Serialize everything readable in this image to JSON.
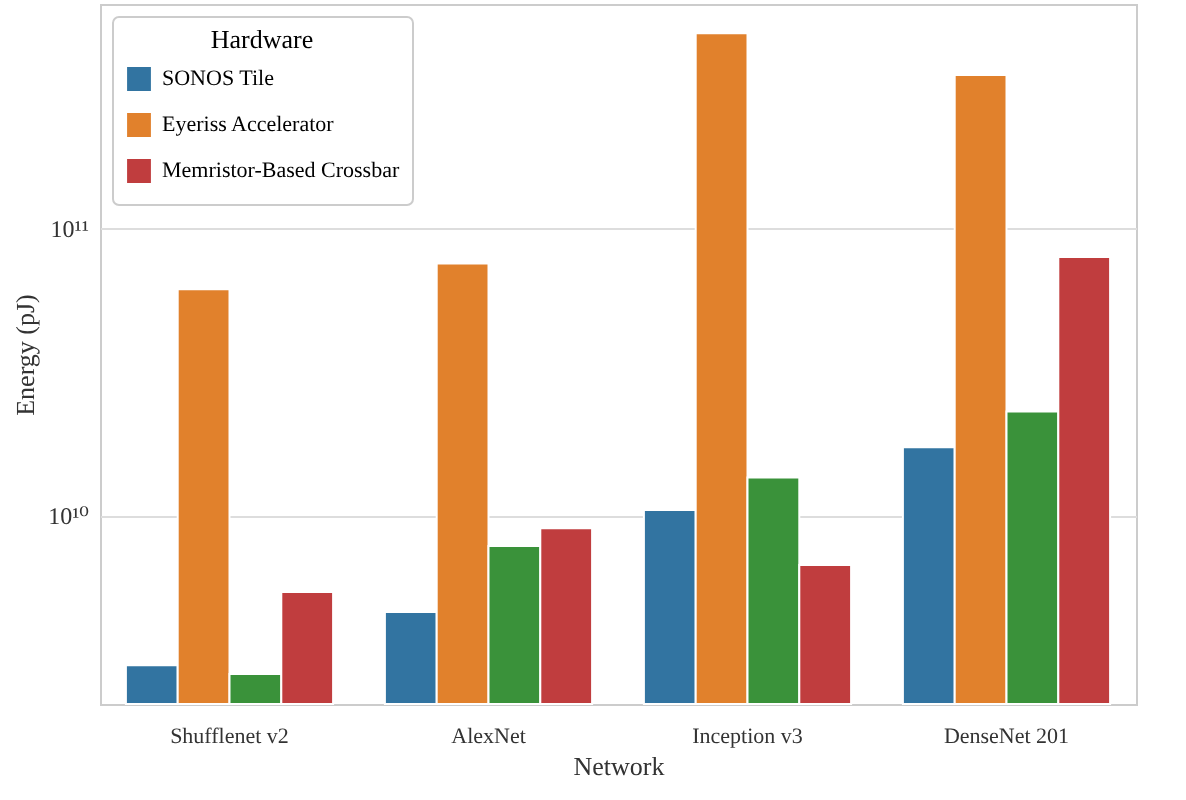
{
  "chart_data": {
    "type": "bar",
    "xlabel": "Network",
    "ylabel": "Energy (pJ)",
    "legend_title": "Hardware",
    "categories": [
      "Shufflenet v2",
      "AlexNet",
      "Inception v3",
      "DenseNet 201"
    ],
    "series": [
      {
        "name": "SONOS Tile",
        "color": "#3274a1",
        "values": [
          3000000000.0,
          4600000000.0,
          10400000000.0,
          17200000000.0
        ]
      },
      {
        "name": "Eyeriss Accelerator",
        "color": "#e1812c",
        "values": [
          61000000000.0,
          75000000000.0,
          475000000000.0,
          340000000000.0
        ]
      },
      {
        "color": "#3a923a",
        "values": [
          2800000000.0,
          7800000000.0,
          13500000000.0,
          22900000000.0
        ]
      },
      {
        "name": "Memristor-Based Crossbar",
        "color": "#c03d3e",
        "values": [
          5400000000.0,
          9000000000.0,
          6700000000.0,
          79000000000.0
        ]
      }
    ],
    "log": true,
    "ylim": [
      2200000000.0,
      600000000000.0
    ],
    "yticks": [
      {
        "value": 10000000000.0,
        "label": "10¹⁰"
      },
      {
        "value": 100000000000.0,
        "label": "10¹¹"
      }
    ],
    "grid": "y",
    "legend": "top left"
  }
}
